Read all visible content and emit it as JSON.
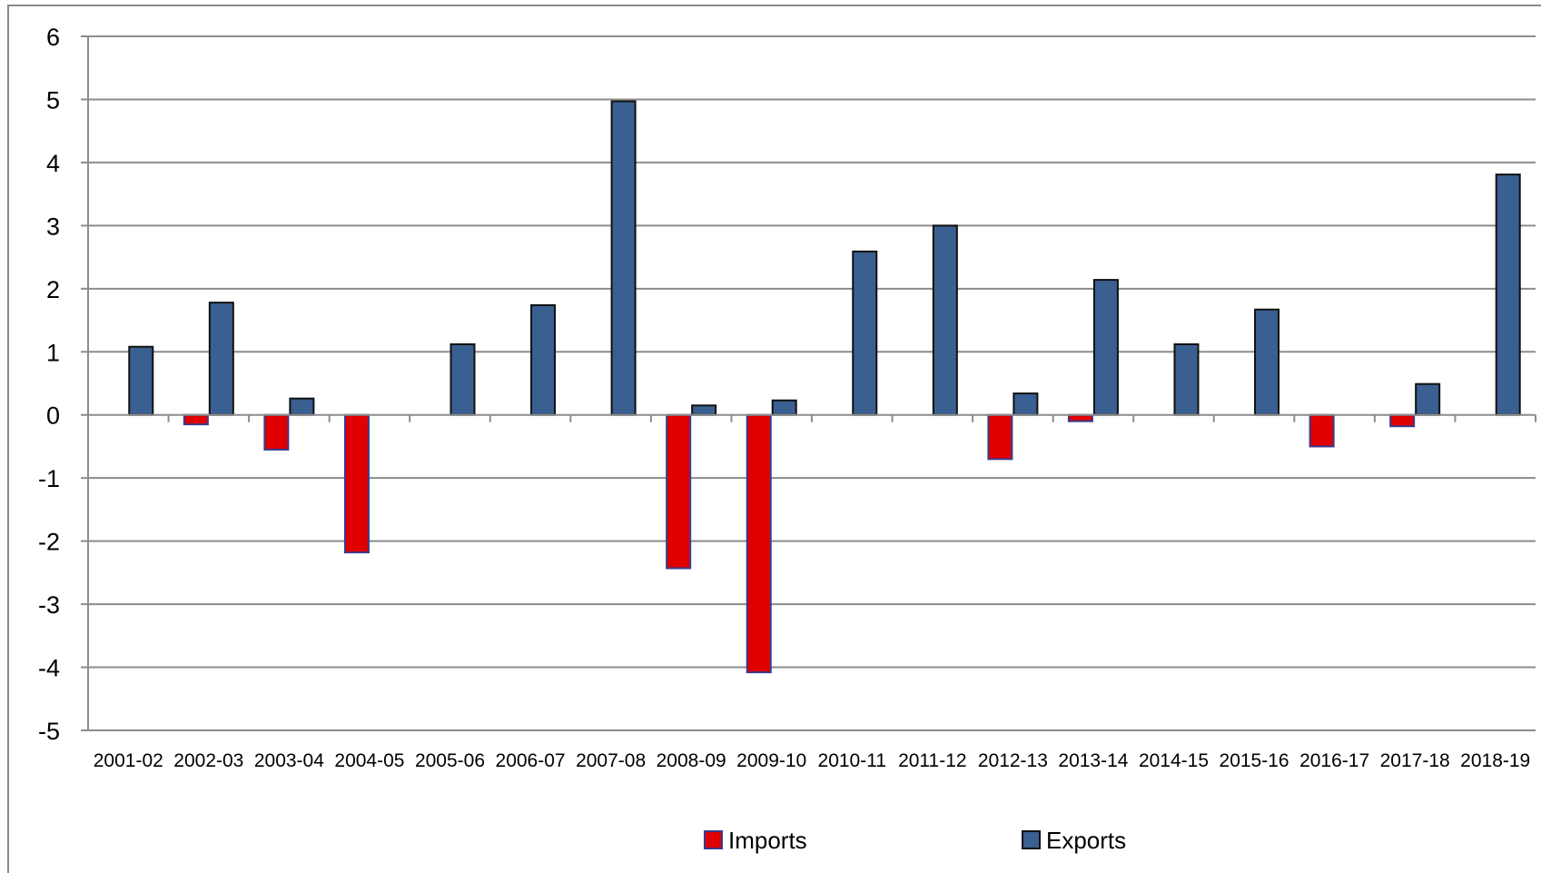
{
  "chart_data": {
    "type": "bar",
    "title": "",
    "xlabel": "",
    "ylabel": "",
    "ylim": [
      -5,
      6
    ],
    "yticks": [
      6,
      5,
      4,
      3,
      2,
      1,
      0,
      -1,
      -2,
      -3,
      -4,
      -5
    ],
    "grid": true,
    "legend_position": "bottom",
    "categories": [
      "2001-02",
      "2002-03",
      "2003-04",
      "2004-05",
      "2005-06",
      "2006-07",
      "2007-08",
      "2008-09",
      "2009-10",
      "2010-11",
      "2011-12",
      "2012-13",
      "2013-14",
      "2014-15",
      "2015-16",
      "2016-17",
      "2017-18",
      "2018-19"
    ],
    "series": [
      {
        "name": "Imports",
        "color": "#e00000",
        "values": [
          0,
          -0.15,
          -0.55,
          -2.18,
          0,
          0,
          0,
          -2.43,
          -4.08,
          0,
          0,
          -0.7,
          -0.1,
          0,
          0,
          -0.5,
          -0.18,
          0
        ]
      },
      {
        "name": "Exports",
        "color": "#3a5f91",
        "values": [
          1.08,
          1.78,
          0.26,
          0,
          1.12,
          1.74,
          4.97,
          0.15,
          0.23,
          2.59,
          3.0,
          0.34,
          2.14,
          1.12,
          1.67,
          0,
          0.49,
          3.81
        ]
      }
    ]
  }
}
